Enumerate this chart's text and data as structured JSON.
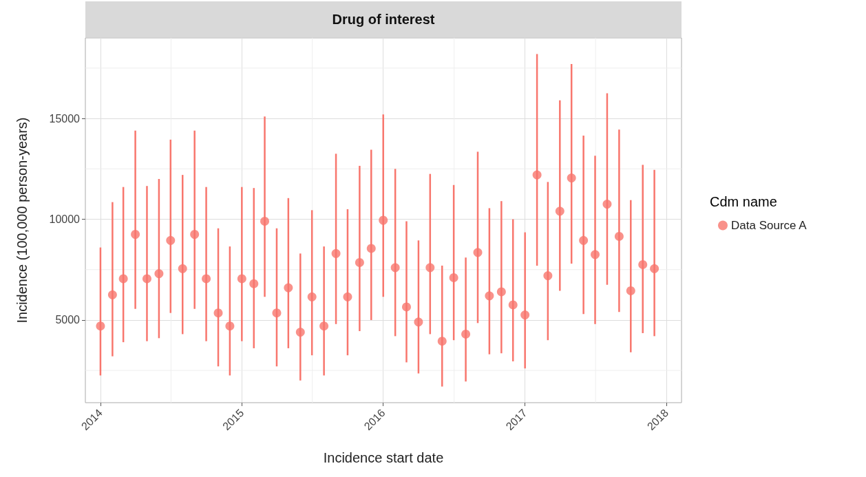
{
  "chart_data": {
    "type": "scatter",
    "title": "Drug of interest",
    "xlabel": "Incidence start date",
    "ylabel": "Incidence (100,000 person-years)",
    "legend_title": "Cdm name",
    "legend": "right",
    "marker": "circle",
    "grid": true,
    "x": [
      "2014-01-01",
      "2014-02-01",
      "2014-03-01",
      "2014-04-01",
      "2014-05-01",
      "2014-06-01",
      "2014-07-01",
      "2014-08-01",
      "2014-09-01",
      "2014-10-01",
      "2014-11-01",
      "2014-12-01",
      "2015-01-01",
      "2015-02-01",
      "2015-03-01",
      "2015-04-01",
      "2015-05-01",
      "2015-06-01",
      "2015-07-01",
      "2015-08-01",
      "2015-09-01",
      "2015-10-01",
      "2015-11-01",
      "2015-12-01",
      "2016-01-01",
      "2016-02-01",
      "2016-03-01",
      "2016-04-01",
      "2016-05-01",
      "2016-06-01",
      "2016-07-01",
      "2016-08-01",
      "2016-09-01",
      "2016-10-01",
      "2016-11-01",
      "2016-12-01",
      "2017-01-01",
      "2017-02-01",
      "2017-03-01",
      "2017-04-01",
      "2017-05-01",
      "2017-06-01",
      "2017-07-01",
      "2017-08-01",
      "2017-09-01",
      "2017-10-01",
      "2017-11-01",
      "2017-12-01"
    ],
    "series": [
      {
        "name": "Data Source A",
        "color": "#f8766d",
        "values": [
          4700,
          6250,
          7050,
          9250,
          7050,
          7300,
          8950,
          7550,
          9250,
          7050,
          5350,
          4700,
          7050,
          6800,
          9900,
          5350,
          6600,
          4400,
          6150,
          4700,
          8300,
          6150,
          7850,
          8550,
          9950,
          7600,
          5650,
          4900,
          7600,
          3950,
          7100,
          4300,
          8350,
          6200,
          6400,
          5750,
          5250,
          12200,
          7200,
          10400,
          12050,
          8950,
          8250,
          10750,
          9150,
          6450,
          7750,
          7550
        ],
        "errors": [
          [
            2250,
            8600
          ],
          [
            3200,
            10850
          ],
          [
            3900,
            11600
          ],
          [
            5550,
            14400
          ],
          [
            3950,
            11650
          ],
          [
            4100,
            12000
          ],
          [
            5350,
            13950
          ],
          [
            4300,
            12200
          ],
          [
            5550,
            14400
          ],
          [
            3950,
            11600
          ],
          [
            2700,
            9550
          ],
          [
            2250,
            8650
          ],
          [
            3950,
            11600
          ],
          [
            3600,
            11550
          ],
          [
            6150,
            15100
          ],
          [
            2700,
            9550
          ],
          [
            3600,
            11050
          ],
          [
            2000,
            8300
          ],
          [
            3250,
            10450
          ],
          [
            2250,
            8650
          ],
          [
            4800,
            13250
          ],
          [
            3250,
            10500
          ],
          [
            4450,
            12650
          ],
          [
            5000,
            13450
          ],
          [
            6150,
            15200
          ],
          [
            4200,
            12500
          ],
          [
            2900,
            9900
          ],
          [
            2350,
            8950
          ],
          [
            4300,
            12250
          ],
          [
            1700,
            7700
          ],
          [
            4000,
            11700
          ],
          [
            1950,
            8100
          ],
          [
            4850,
            13350
          ],
          [
            3300,
            10550
          ],
          [
            3350,
            10900
          ],
          [
            2950,
            10000
          ],
          [
            2600,
            9350
          ],
          [
            7700,
            18200
          ],
          [
            4000,
            11850
          ],
          [
            6450,
            15900
          ],
          [
            7800,
            17700
          ],
          [
            5300,
            14150
          ],
          [
            4800,
            13150
          ],
          [
            6750,
            16250
          ],
          [
            5400,
            14450
          ],
          [
            3400,
            10950
          ],
          [
            4350,
            12700
          ],
          [
            4200,
            12450
          ]
        ]
      }
    ],
    "xlim": [
      "2013-11-23",
      "2018-02-09"
    ],
    "xticks": [
      {
        "value": "2014-01-01",
        "label": "2014"
      },
      {
        "value": "2014-07-02",
        "label": null
      },
      {
        "value": "2015-01-01",
        "label": "2015"
      },
      {
        "value": "2015-07-02",
        "label": null
      },
      {
        "value": "2016-01-01",
        "label": "2016"
      },
      {
        "value": "2016-07-02",
        "label": null
      },
      {
        "value": "2017-01-01",
        "label": "2017"
      },
      {
        "value": "2017-07-02",
        "label": null
      },
      {
        "value": "2018-01-01",
        "label": "2018"
      }
    ],
    "ylim": [
      900,
      19000
    ],
    "yticks": [
      {
        "value": 2500,
        "label": null
      },
      5000,
      {
        "value": 7500,
        "label": null
      },
      10000,
      {
        "value": 12500,
        "label": null
      },
      15000,
      {
        "value": 17500,
        "label": null
      }
    ]
  }
}
